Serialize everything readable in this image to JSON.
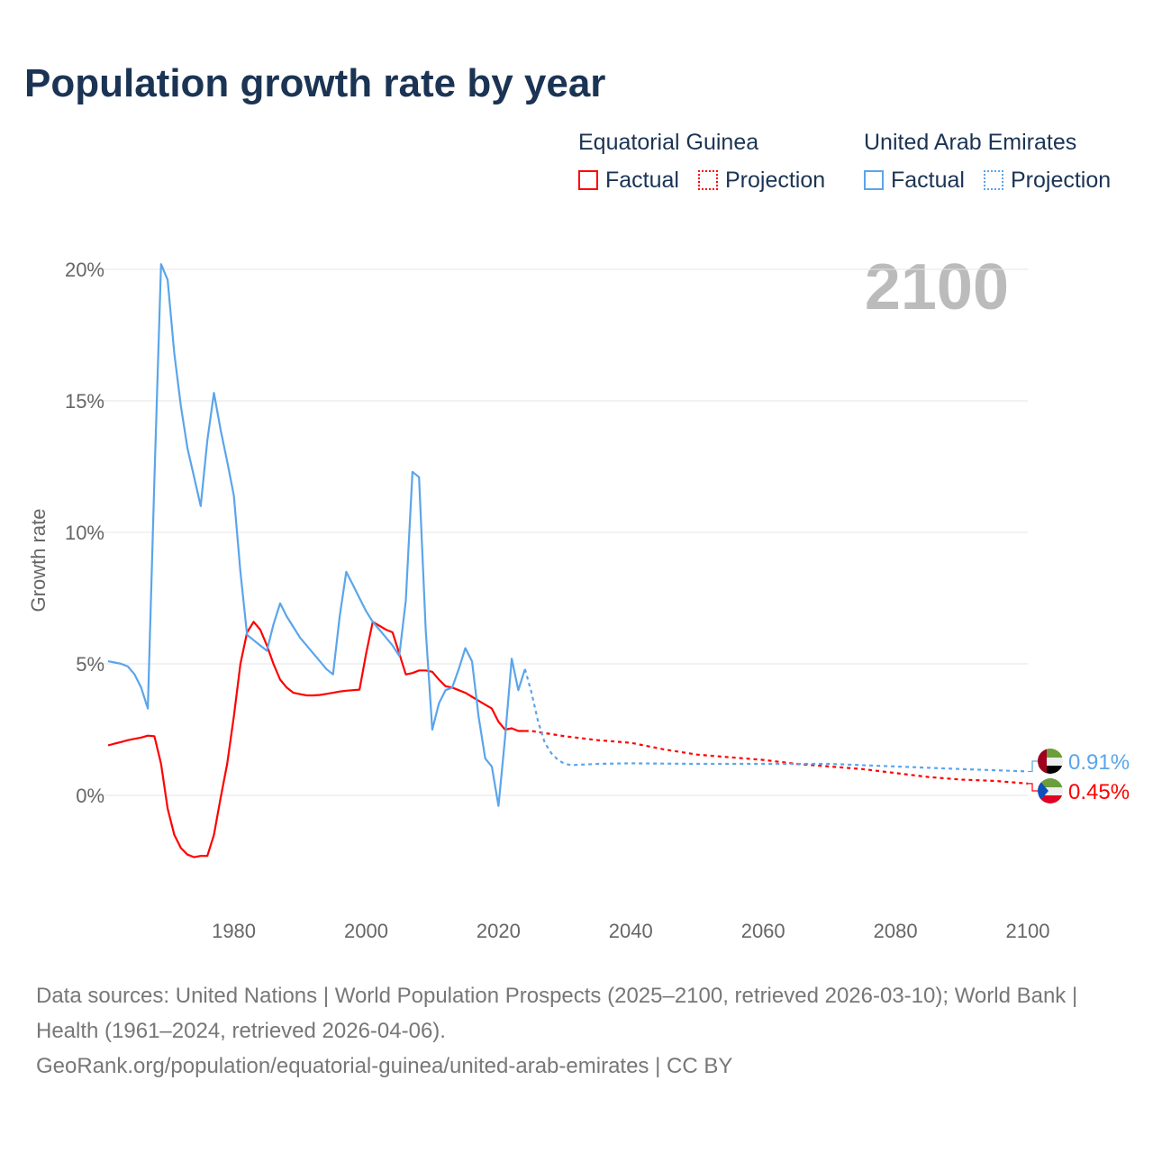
{
  "chart_data": {
    "type": "line",
    "title": "Population growth rate by year",
    "ylabel": "Growth rate",
    "xlabel": "",
    "xlim": [
      1961,
      2100
    ],
    "ylim": [
      -4,
      22
    ],
    "xticks": [
      "1980",
      "2000",
      "2020",
      "2040",
      "2060",
      "2080",
      "2100"
    ],
    "yticks": [
      "20%",
      "15%",
      "10%",
      "5%",
      "0%"
    ],
    "year_label": "2100",
    "grid": true,
    "legend": {
      "placement": "top-right",
      "groups": [
        {
          "name": "Equatorial Guinea",
          "factual": "Factual",
          "projection": "Projection"
        },
        {
          "name": "United Arab Emirates",
          "factual": "Factual",
          "projection": "Projection"
        }
      ]
    },
    "series": [
      {
        "name": "Equatorial Guinea",
        "kind": "Factual",
        "color": "#ff0000",
        "end_label": "0.45%",
        "x": [
          1961,
          1962,
          1963,
          1964,
          1965,
          1966,
          1967,
          1968,
          1969,
          1970,
          1971,
          1972,
          1973,
          1974,
          1975,
          1976,
          1977,
          1978,
          1979,
          1980,
          1981,
          1982,
          1983,
          1984,
          1985,
          1986,
          1987,
          1988,
          1989,
          1990,
          1991,
          1992,
          1993,
          1994,
          1995,
          1996,
          1997,
          1998,
          1999,
          2000,
          2001,
          2002,
          2003,
          2004,
          2005,
          2006,
          2007,
          2008,
          2009,
          2010,
          2011,
          2012,
          2013,
          2014,
          2015,
          2016,
          2017,
          2018,
          2019,
          2020,
          2021,
          2022,
          2023,
          2024
        ],
        "y": [
          1.9,
          1.97,
          2.03,
          2.1,
          2.15,
          2.2,
          2.27,
          2.25,
          1.2,
          -0.5,
          -1.5,
          -2.0,
          -2.25,
          -2.35,
          -2.3,
          -2.3,
          -1.5,
          -0.1,
          1.2,
          3.0,
          5.0,
          6.2,
          6.6,
          6.3,
          5.7,
          5.0,
          4.4,
          4.1,
          3.9,
          3.85,
          3.8,
          3.8,
          3.82,
          3.86,
          3.9,
          3.95,
          3.98,
          4.0,
          4.02,
          5.4,
          6.6,
          6.45,
          6.3,
          6.2,
          5.4,
          4.6,
          4.65,
          4.75,
          4.75,
          4.7,
          4.4,
          4.15,
          4.1,
          4.0,
          3.9,
          3.75,
          3.6,
          3.45,
          3.3,
          2.8,
          2.5,
          2.55,
          2.45,
          2.45
        ]
      },
      {
        "name": "Equatorial Guinea",
        "kind": "Projection",
        "color": "#ff0000",
        "x": [
          2024,
          2025,
          2030,
          2035,
          2040,
          2045,
          2050,
          2055,
          2060,
          2065,
          2070,
          2075,
          2080,
          2085,
          2090,
          2095,
          2100
        ],
        "y": [
          2.45,
          2.45,
          2.25,
          2.1,
          2.0,
          1.75,
          1.55,
          1.45,
          1.35,
          1.2,
          1.1,
          1.0,
          0.85,
          0.7,
          0.6,
          0.55,
          0.45
        ]
      },
      {
        "name": "United Arab Emirates",
        "kind": "Factual",
        "color": "#5aa5eb",
        "end_label": "0.91%",
        "x": [
          1961,
          1962,
          1963,
          1964,
          1965,
          1966,
          1967,
          1968,
          1969,
          1970,
          1971,
          1972,
          1973,
          1974,
          1975,
          1976,
          1977,
          1978,
          1979,
          1980,
          1981,
          1982,
          1983,
          1984,
          1985,
          1986,
          1987,
          1988,
          1989,
          1990,
          1991,
          1992,
          1993,
          1994,
          1995,
          1996,
          1997,
          1998,
          1999,
          2000,
          2001,
          2002,
          2003,
          2004,
          2005,
          2006,
          2007,
          2008,
          2009,
          2010,
          2011,
          2012,
          2013,
          2014,
          2015,
          2016,
          2017,
          2018,
          2019,
          2020,
          2021,
          2022,
          2023,
          2024
        ],
        "y": [
          5.1,
          5.05,
          5.0,
          4.9,
          4.6,
          4.1,
          3.3,
          12.0,
          20.2,
          19.6,
          16.8,
          14.8,
          13.2,
          12.1,
          11.0,
          13.5,
          15.3,
          13.9,
          12.7,
          11.4,
          8.5,
          6.1,
          5.9,
          5.7,
          5.5,
          6.5,
          7.3,
          6.8,
          6.4,
          6.0,
          5.7,
          5.4,
          5.1,
          4.8,
          4.6,
          6.8,
          8.5,
          8.0,
          7.5,
          7.0,
          6.6,
          6.3,
          6.0,
          5.7,
          5.3,
          7.4,
          12.3,
          12.1,
          6.3,
          2.5,
          3.5,
          4.0,
          4.1,
          4.8,
          5.6,
          5.1,
          3.0,
          1.4,
          1.1,
          -0.4,
          2.2,
          5.2,
          4.0,
          4.8
        ]
      },
      {
        "name": "United Arab Emirates",
        "kind": "Projection",
        "color": "#5aa5eb",
        "x": [
          2024,
          2025,
          2026,
          2027,
          2028,
          2029,
          2030,
          2031,
          2035,
          2040,
          2050,
          2060,
          2070,
          2080,
          2090,
          2100
        ],
        "y": [
          4.8,
          3.9,
          2.8,
          2.0,
          1.6,
          1.35,
          1.2,
          1.15,
          1.2,
          1.22,
          1.2,
          1.2,
          1.2,
          1.1,
          1.0,
          0.91
        ]
      }
    ]
  },
  "footer": {
    "line1": "Data sources: United Nations | World Population Prospects (2025–2100, retrieved 2026-03-10); World Bank | Health (1961–2024, retrieved 2026-04-06).",
    "line2": "GeoRank.org/population/equatorial-guinea/united-arab-emirates | CC BY"
  }
}
